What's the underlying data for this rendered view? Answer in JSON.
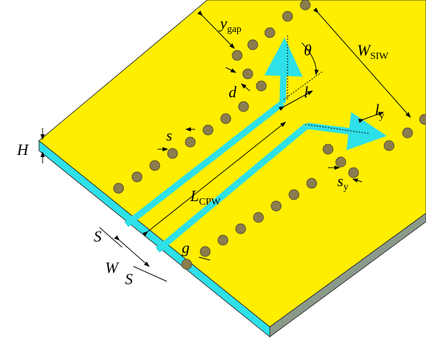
{
  "labels": [
    {
      "main": "y",
      "sub": "gap"
    },
    {
      "main": "θ"
    },
    {
      "main": "W",
      "sub": "SIW"
    },
    {
      "main": "d"
    },
    {
      "main": "l"
    },
    {
      "main": "l",
      "sub": "y"
    },
    {
      "main": "s"
    },
    {
      "main": "H"
    },
    {
      "main": "L",
      "sub": "CPW"
    },
    {
      "main": "s",
      "sub": "y"
    },
    {
      "main": "S"
    },
    {
      "main": "W"
    },
    {
      "main": "S"
    },
    {
      "main": "g"
    }
  ]
}
